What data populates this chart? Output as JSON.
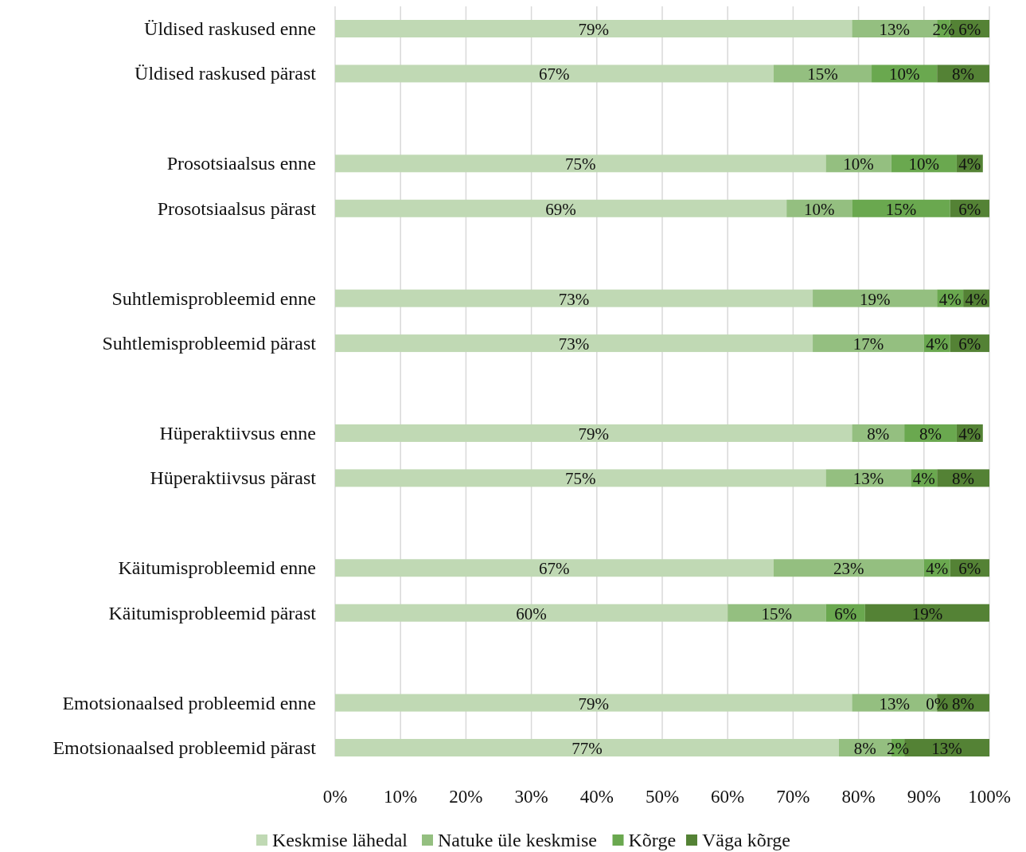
{
  "chart_data": {
    "type": "bar",
    "orientation": "horizontal",
    "stacked": true,
    "grid": "x",
    "legend": "bottom",
    "categories": [
      "Üldised raskused enne",
      "Üldised raskused pärast",
      null,
      "Prosotsiaalsus enne",
      "Prosotsiaalsus pärast",
      null,
      "Suhtlemisprobleemid enne",
      "Suhtlemisprobleemid pärast",
      null,
      "Hüperaktiivsus enne",
      "Hüperaktiivsus pärast",
      null,
      "Käitumisprobleemid enne",
      "Käitumisprobleemid pärast",
      null,
      "Emotsionaalsed probleemid enne",
      "Emotsionaalsed probleemid pärast"
    ],
    "xlim": [
      0,
      100
    ],
    "xticks": [
      {
        "value": 0,
        "label": "0%"
      },
      {
        "value": 10,
        "label": "10%"
      },
      {
        "value": 20,
        "label": "20%"
      },
      {
        "value": 30,
        "label": "30%"
      },
      {
        "value": 40,
        "label": "40%"
      },
      {
        "value": 50,
        "label": "50%"
      },
      {
        "value": 60,
        "label": "60%"
      },
      {
        "value": 70,
        "label": "70%"
      },
      {
        "value": 80,
        "label": "80%"
      },
      {
        "value": 90,
        "label": "90%"
      },
      {
        "value": 100,
        "label": "100%"
      }
    ],
    "series": [
      {
        "name": "Keskmise lähedal",
        "color": "#c0d9b4",
        "values": [
          79,
          67,
          null,
          75,
          69,
          null,
          73,
          73,
          null,
          79,
          75,
          null,
          67,
          60,
          null,
          79,
          77
        ],
        "value_labels": [
          "79%",
          "67%",
          null,
          "75%",
          "69%",
          null,
          "73%",
          "73%",
          null,
          "79%",
          "75%",
          null,
          "67%",
          "60%",
          null,
          "79%",
          "77%"
        ]
      },
      {
        "name": "Natuke üle keskmise",
        "color": "#94bf80",
        "values": [
          13,
          15,
          null,
          10,
          10,
          null,
          19,
          17,
          null,
          8,
          13,
          null,
          23,
          15,
          null,
          13,
          8
        ],
        "value_labels": [
          "13%",
          "15%",
          null,
          "10%",
          "10%",
          null,
          "19%",
          "17%",
          null,
          "8%",
          "13%",
          null,
          "23%",
          "15%",
          null,
          "13%",
          "8%"
        ]
      },
      {
        "name": "Kõrge",
        "color": "#6aa84f",
        "values": [
          2,
          10,
          null,
          10,
          15,
          null,
          4,
          4,
          null,
          8,
          4,
          null,
          4,
          6,
          null,
          0,
          2
        ],
        "value_labels": [
          "2%",
          "10%",
          null,
          "10%",
          "15%",
          null,
          "4%",
          "4%",
          null,
          "8%",
          "4%",
          null,
          "4%",
          "6%",
          null,
          "0%",
          "2%"
        ]
      },
      {
        "name": "Väga kõrge",
        "color": "#548235",
        "values": [
          6,
          8,
          null,
          4,
          6,
          null,
          4,
          6,
          null,
          4,
          8,
          null,
          6,
          19,
          null,
          8,
          13
        ],
        "value_labels": [
          "6%",
          "8%",
          null,
          "4%",
          "6%",
          null,
          "4%",
          "6%",
          null,
          "4%",
          "8%",
          null,
          "6%",
          "19%",
          null,
          "8%",
          "13%"
        ]
      }
    ]
  }
}
